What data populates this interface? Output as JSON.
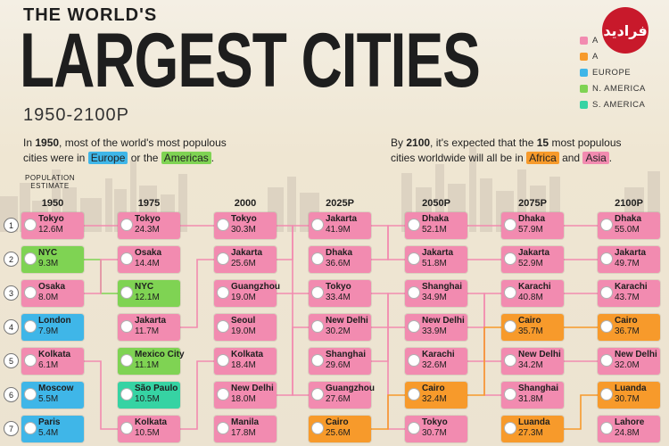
{
  "header": {
    "title_small": "THE WORLD'S",
    "title_big": "LARGEST CITIES",
    "subtitle": "1950-2100P",
    "logo_text": "فرادید"
  },
  "legend": [
    {
      "label": "A",
      "color": "#f28bb0"
    },
    {
      "label": "A",
      "color": "#f79a2b"
    },
    {
      "label": "EUROPE",
      "color": "#3fb6e8"
    },
    {
      "label": "N. AMERICA",
      "color": "#7fd353"
    },
    {
      "label": "S. AMERICA",
      "color": "#36d3a3"
    }
  ],
  "notes": {
    "left": {
      "a": "In ",
      "b": "1950",
      "c": ", most of the world's most populous",
      "d": "cities were in ",
      "europe": "Europe",
      "e": " or the ",
      "americas": "Americas",
      "f": "."
    },
    "right": {
      "a": "By ",
      "b": "2100",
      "c": ", it's expected that the ",
      "d": "15",
      "e": " most populous",
      "f": "cities worldwide will all be in ",
      "africa": "Africa",
      "g": " and ",
      "asia": "Asia",
      "h": "."
    }
  },
  "pop_estimate": "POPULATION ESTIMATE",
  "colors": {
    "asia": "#f28bb0",
    "africa": "#f79a2b",
    "europe": "#3fb6e8",
    "namerica": "#7fd353",
    "samerica": "#36d3a3"
  },
  "chart_data": {
    "type": "table",
    "title": "THE WORLD'S LARGEST CITIES",
    "subtitle": "1950-2100P",
    "years": [
      "1950",
      "1975",
      "2000",
      "2025P",
      "2050P",
      "2075P",
      "2100P"
    ],
    "ranks": [
      "1",
      "2",
      "3",
      "4",
      "5",
      "6",
      "7"
    ],
    "columns": [
      [
        {
          "city": "Tokyo",
          "pop": "12.6M",
          "region": "asia"
        },
        {
          "city": "NYC",
          "pop": "9.3M",
          "region": "namerica"
        },
        {
          "city": "Osaka",
          "pop": "8.0M",
          "region": "asia"
        },
        {
          "city": "London",
          "pop": "7.9M",
          "region": "europe"
        },
        {
          "city": "Kolkata",
          "pop": "6.1M",
          "region": "asia"
        },
        {
          "city": "Moscow",
          "pop": "5.5M",
          "region": "europe"
        },
        {
          "city": "Paris",
          "pop": "5.4M",
          "region": "europe"
        }
      ],
      [
        {
          "city": "Tokyo",
          "pop": "24.3M",
          "region": "asia"
        },
        {
          "city": "Osaka",
          "pop": "14.4M",
          "region": "asia"
        },
        {
          "city": "NYC",
          "pop": "12.1M",
          "region": "namerica"
        },
        {
          "city": "Jakarta",
          "pop": "11.7M",
          "region": "asia"
        },
        {
          "city": "Mexico City",
          "pop": "11.1M",
          "region": "namerica"
        },
        {
          "city": "São Paulo",
          "pop": "10.5M",
          "region": "samerica"
        },
        {
          "city": "Kolkata",
          "pop": "10.5M",
          "region": "asia"
        }
      ],
      [
        {
          "city": "Tokyo",
          "pop": "30.3M",
          "region": "asia"
        },
        {
          "city": "Jakarta",
          "pop": "25.6M",
          "region": "asia"
        },
        {
          "city": "Guangzhou",
          "pop": "19.0M",
          "region": "asia"
        },
        {
          "city": "Seoul",
          "pop": "19.0M",
          "region": "asia"
        },
        {
          "city": "Kolkata",
          "pop": "18.4M",
          "region": "asia"
        },
        {
          "city": "New Delhi",
          "pop": "18.0M",
          "region": "asia"
        },
        {
          "city": "Manila",
          "pop": "17.8M",
          "region": "asia"
        }
      ],
      [
        {
          "city": "Jakarta",
          "pop": "41.9M",
          "region": "asia"
        },
        {
          "city": "Dhaka",
          "pop": "36.6M",
          "region": "asia"
        },
        {
          "city": "Tokyo",
          "pop": "33.4M",
          "region": "asia"
        },
        {
          "city": "New Delhi",
          "pop": "30.2M",
          "region": "asia"
        },
        {
          "city": "Shanghai",
          "pop": "29.6M",
          "region": "asia"
        },
        {
          "city": "Guangzhou",
          "pop": "27.6M",
          "region": "asia"
        },
        {
          "city": "Cairo",
          "pop": "25.6M",
          "region": "africa"
        }
      ],
      [
        {
          "city": "Dhaka",
          "pop": "52.1M",
          "region": "asia"
        },
        {
          "city": "Jakarta",
          "pop": "51.8M",
          "region": "asia"
        },
        {
          "city": "Shanghai",
          "pop": "34.9M",
          "region": "asia"
        },
        {
          "city": "New Delhi",
          "pop": "33.9M",
          "region": "asia"
        },
        {
          "city": "Karachi",
          "pop": "32.6M",
          "region": "asia"
        },
        {
          "city": "Cairo",
          "pop": "32.4M",
          "region": "africa"
        },
        {
          "city": "Tokyo",
          "pop": "30.7M",
          "region": "asia"
        }
      ],
      [
        {
          "city": "Dhaka",
          "pop": "57.9M",
          "region": "asia"
        },
        {
          "city": "Jakarta",
          "pop": "52.9M",
          "region": "asia"
        },
        {
          "city": "Karachi",
          "pop": "40.8M",
          "region": "asia"
        },
        {
          "city": "Cairo",
          "pop": "35.7M",
          "region": "africa"
        },
        {
          "city": "New Delhi",
          "pop": "34.2M",
          "region": "asia"
        },
        {
          "city": "Shanghai",
          "pop": "31.8M",
          "region": "asia"
        },
        {
          "city": "Luanda",
          "pop": "27.3M",
          "region": "africa"
        }
      ],
      [
        {
          "city": "Dhaka",
          "pop": "55.0M",
          "region": "asia"
        },
        {
          "city": "Jakarta",
          "pop": "49.7M",
          "region": "asia"
        },
        {
          "city": "Karachi",
          "pop": "43.7M",
          "region": "asia"
        },
        {
          "city": "Cairo",
          "pop": "36.7M",
          "region": "africa"
        },
        {
          "city": "New Delhi",
          "pop": "32.0M",
          "region": "asia"
        },
        {
          "city": "Luanda",
          "pop": "30.7M",
          "region": "africa"
        },
        {
          "city": "Lahore",
          "pop": "24.8M",
          "region": "asia"
        }
      ]
    ]
  }
}
